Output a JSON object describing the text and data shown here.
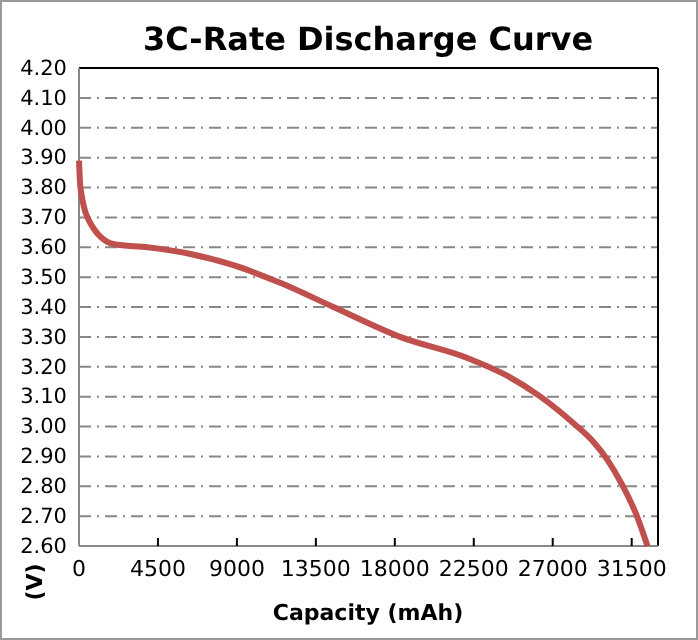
{
  "chart_data": {
    "type": "line",
    "title": "3C-Rate Discharge Curve",
    "xlabel": "Capacity (mAh)",
    "ylabel": "(V)",
    "xlim": [
      0,
      33000
    ],
    "xticks": [
      0,
      4500,
      9000,
      13500,
      18000,
      22500,
      27000,
      31500
    ],
    "ylim": [
      2.6,
      4.2
    ],
    "yticks": [
      {
        "value": 2.6,
        "label": "2.60"
      },
      {
        "value": 2.7,
        "label": "2.70"
      },
      {
        "value": 2.8,
        "label": "2.80"
      },
      {
        "value": 2.9,
        "label": "2.90"
      },
      {
        "value": 3.0,
        "label": "3.00"
      },
      {
        "value": 3.1,
        "label": "3.10"
      },
      {
        "value": 3.2,
        "label": "3.20"
      },
      {
        "value": 3.3,
        "label": "3.30"
      },
      {
        "value": 3.4,
        "label": "3.40"
      },
      {
        "value": 3.5,
        "label": "3.50"
      },
      {
        "value": 3.6,
        "label": "3.60"
      },
      {
        "value": 3.7,
        "label": "3.70"
      },
      {
        "value": 3.8,
        "label": "3.80"
      },
      {
        "value": 3.9,
        "label": "3.90"
      },
      {
        "value": 4.0,
        "label": "4.00"
      },
      {
        "value": 4.1,
        "label": "4.10"
      },
      {
        "value": 4.2,
        "label": "4.20"
      }
    ],
    "grid": "y",
    "marker": "none",
    "line_style": "solid",
    "x": [
      0,
      80,
      650,
      2000,
      3900,
      6150,
      8800,
      11500,
      14500,
      18300,
      22100,
      24400,
      26300,
      28200,
      29300,
      30100,
      31000,
      31800,
      32400
    ],
    "series": [
      {
        "color": "#c0504d",
        "values": [
          3.89,
          3.8,
          3.68,
          3.61,
          3.6,
          3.58,
          3.54,
          3.48,
          3.4,
          3.3,
          3.23,
          3.17,
          3.1,
          3.01,
          2.95,
          2.89,
          2.8,
          2.7,
          2.6
        ]
      }
    ]
  }
}
